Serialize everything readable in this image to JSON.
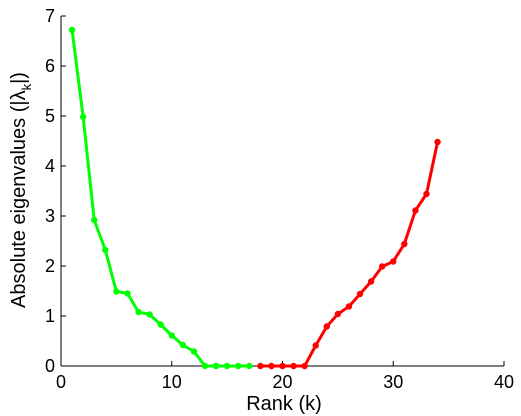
{
  "chart_data": {
    "type": "line",
    "xlabel": "Rank (k)",
    "ylabel": {
      "prefix": "Absolute eigenvalues (|λ",
      "subscript": "k",
      "suffix": "|)"
    },
    "xlim": [
      0,
      40
    ],
    "ylim": [
      0,
      7
    ],
    "xticks": [
      0,
      10,
      20,
      30,
      40
    ],
    "yticks": [
      0,
      1,
      2,
      3,
      4,
      5,
      6,
      7
    ],
    "grid": false,
    "legend": "none",
    "series": [
      {
        "color": "#00ff00",
        "x": [
          1,
          2,
          3,
          4,
          5,
          6,
          7,
          8,
          9,
          10,
          11,
          12,
          13,
          14,
          15,
          16,
          17
        ],
        "y": [
          6.72,
          4.98,
          2.92,
          2.32,
          1.49,
          1.45,
          1.08,
          1.03,
          0.83,
          0.61,
          0.42,
          0.29,
          0.0,
          0.0,
          0.0,
          0.0,
          0.0
        ]
      },
      {
        "color": "#ff0000",
        "x": [
          18,
          19,
          20,
          21,
          22,
          23,
          24,
          25,
          26,
          27,
          28,
          29,
          30,
          31,
          32,
          33,
          34
        ],
        "y": [
          0.0,
          0.0,
          0.0,
          0.0,
          0.0,
          0.41,
          0.79,
          1.04,
          1.19,
          1.44,
          1.69,
          1.99,
          2.09,
          2.44,
          3.11,
          3.44,
          4.48
        ]
      }
    ]
  }
}
